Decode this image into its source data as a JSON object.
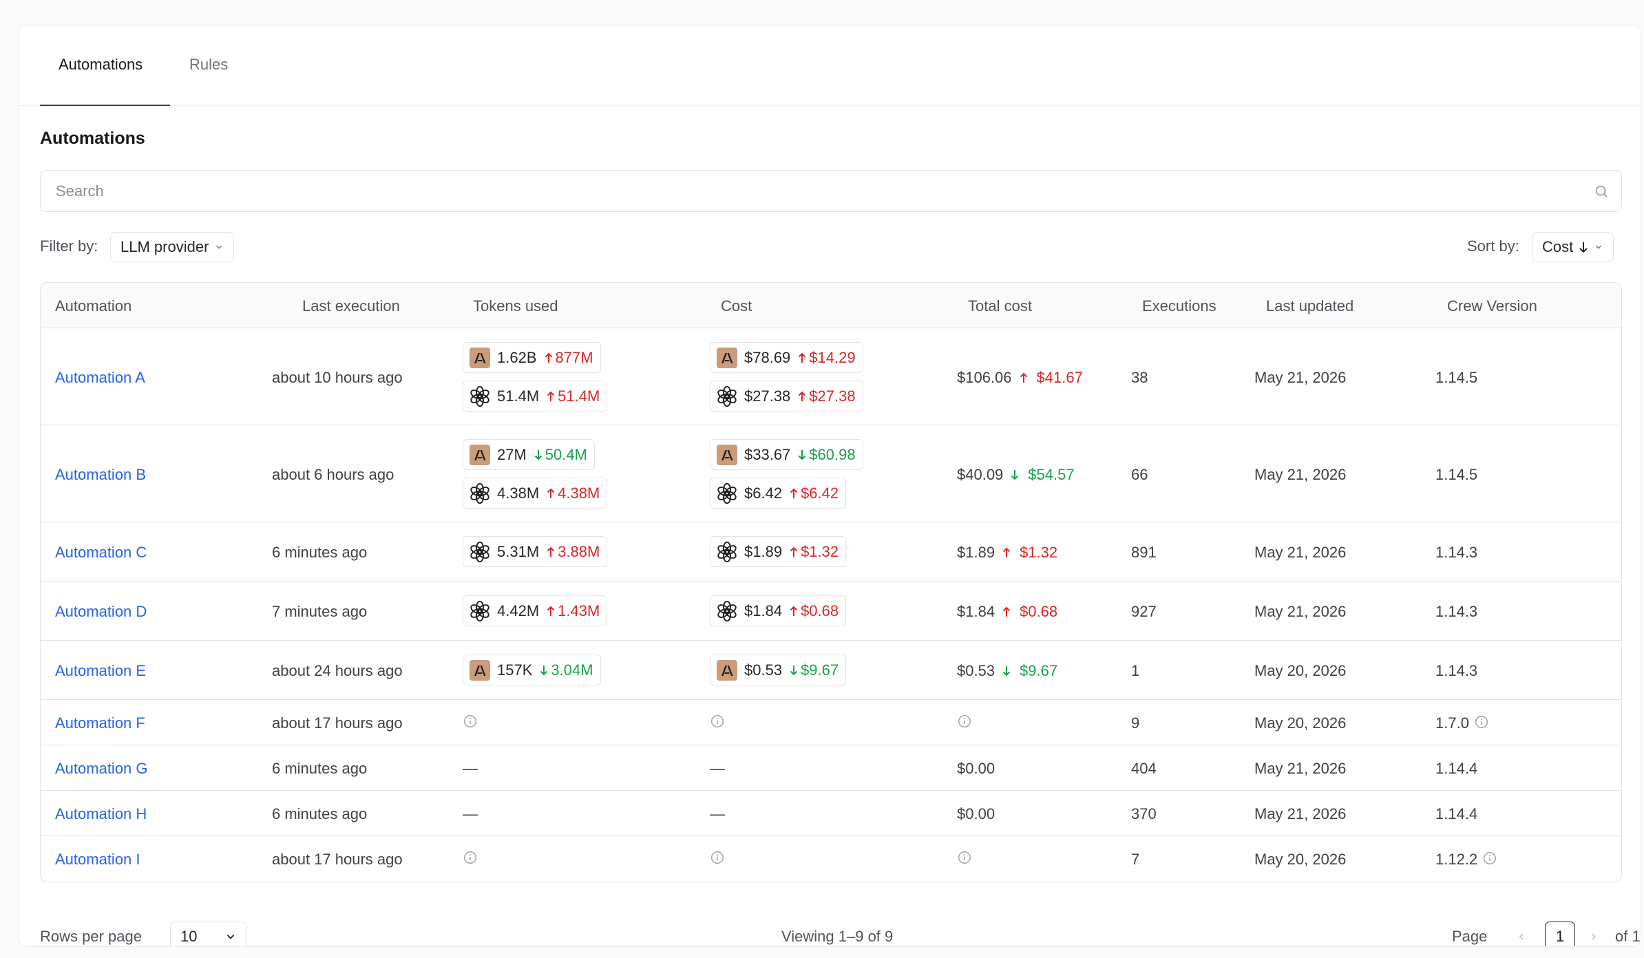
{
  "tabs": [
    {
      "label": "Automations",
      "active": true
    },
    {
      "label": "Rules",
      "active": false
    }
  ],
  "section_title": "Automations",
  "search": {
    "placeholder": "Search"
  },
  "filter": {
    "label": "Filter by:",
    "value": "LLM provider"
  },
  "sort": {
    "label": "Sort by:",
    "value": "Cost"
  },
  "columns": [
    "Automation",
    "Last execution",
    "Tokens used",
    "Cost",
    "Total cost",
    "Executions",
    "Last updated",
    "Crew Version"
  ],
  "rows": [
    {
      "name": "Automation A",
      "last_execution": "about 10 hours ago",
      "tokens": [
        {
          "provider": "anthropic",
          "value": "1.62B",
          "delta": "877M",
          "dir": "up"
        },
        {
          "provider": "openai",
          "value": "51.4M",
          "delta": "51.4M",
          "dir": "up"
        }
      ],
      "cost": [
        {
          "provider": "anthropic",
          "value": "$78.69",
          "delta": "$14.29",
          "dir": "up"
        },
        {
          "provider": "openai",
          "value": "$27.38",
          "delta": "$27.38",
          "dir": "up"
        }
      ],
      "total": {
        "value": "$106.06",
        "delta": "$41.67",
        "dir": "up"
      },
      "executions": "38",
      "updated": "May 21, 2026",
      "version": "1.14.5",
      "version_info": false
    },
    {
      "name": "Automation B",
      "last_execution": "about 6 hours ago",
      "tokens": [
        {
          "provider": "anthropic",
          "value": "27M",
          "delta": "50.4M",
          "dir": "down"
        },
        {
          "provider": "openai",
          "value": "4.38M",
          "delta": "4.38M",
          "dir": "up"
        }
      ],
      "cost": [
        {
          "provider": "anthropic",
          "value": "$33.67",
          "delta": "$60.98",
          "dir": "down"
        },
        {
          "provider": "openai",
          "value": "$6.42",
          "delta": "$6.42",
          "dir": "up"
        }
      ],
      "total": {
        "value": "$40.09",
        "delta": "$54.57",
        "dir": "down"
      },
      "executions": "66",
      "updated": "May 21, 2026",
      "version": "1.14.5",
      "version_info": false
    },
    {
      "name": "Automation C",
      "last_execution": "6 minutes ago",
      "tokens": [
        {
          "provider": "openai",
          "value": "5.31M",
          "delta": "3.88M",
          "dir": "up"
        }
      ],
      "cost": [
        {
          "provider": "openai",
          "value": "$1.89",
          "delta": "$1.32",
          "dir": "up"
        }
      ],
      "total": {
        "value": "$1.89",
        "delta": "$1.32",
        "dir": "up"
      },
      "executions": "891",
      "updated": "May 21, 2026",
      "version": "1.14.3",
      "version_info": false
    },
    {
      "name": "Automation D",
      "last_execution": "7 minutes ago",
      "tokens": [
        {
          "provider": "openai",
          "value": "4.42M",
          "delta": "1.43M",
          "dir": "up"
        }
      ],
      "cost": [
        {
          "provider": "openai",
          "value": "$1.84",
          "delta": "$0.68",
          "dir": "up"
        }
      ],
      "total": {
        "value": "$1.84",
        "delta": "$0.68",
        "dir": "up"
      },
      "executions": "927",
      "updated": "May 21, 2026",
      "version": "1.14.3",
      "version_info": false
    },
    {
      "name": "Automation E",
      "last_execution": "about 24 hours ago",
      "tokens": [
        {
          "provider": "anthropic",
          "value": "157K",
          "delta": "3.04M",
          "dir": "down"
        }
      ],
      "cost": [
        {
          "provider": "anthropic",
          "value": "$0.53",
          "delta": "$9.67",
          "dir": "down"
        }
      ],
      "total": {
        "value": "$0.53",
        "delta": "$9.67",
        "dir": "down"
      },
      "executions": "1",
      "updated": "May 20, 2026",
      "version": "1.14.3",
      "version_info": false
    },
    {
      "name": "Automation F",
      "last_execution": "about 17 hours ago",
      "tokens_info": true,
      "cost_info": true,
      "total_info": true,
      "executions": "9",
      "updated": "May 20, 2026",
      "version": "1.7.0",
      "version_info": true
    },
    {
      "name": "Automation G",
      "last_execution": "6 minutes ago",
      "tokens_text": "—",
      "cost_text": "—",
      "total_text": "$0.00",
      "executions": "404",
      "updated": "May 21, 2026",
      "version": "1.14.4",
      "version_info": false
    },
    {
      "name": "Automation H",
      "last_execution": "6 minutes ago",
      "tokens_text": "—",
      "cost_text": "—",
      "total_text": "$0.00",
      "executions": "370",
      "updated": "May 21, 2026",
      "version": "1.14.4",
      "version_info": false
    },
    {
      "name": "Automation I",
      "last_execution": "about 17 hours ago",
      "tokens_info": true,
      "cost_info": true,
      "total_info": true,
      "executions": "7",
      "updated": "May 20, 2026",
      "version": "1.12.2",
      "version_info": true
    }
  ],
  "footer": {
    "rows_per_page_label": "Rows per page",
    "rows_per_page_value": "10",
    "viewing": "Viewing 1–9 of 9",
    "page_label": "Page",
    "current_page": "1",
    "of_pages": "of 1"
  },
  "colors": {
    "link": "#2563eb",
    "up": "#dc2626",
    "down": "#16a34a",
    "anthropic_logo_bg": "#cc9b7a"
  },
  "icons": {
    "search": "search-icon",
    "chevron": "chevron-down-icon",
    "info": "info-icon",
    "anthropic": "anthropic-logo-icon",
    "openai": "openai-logo-icon"
  }
}
